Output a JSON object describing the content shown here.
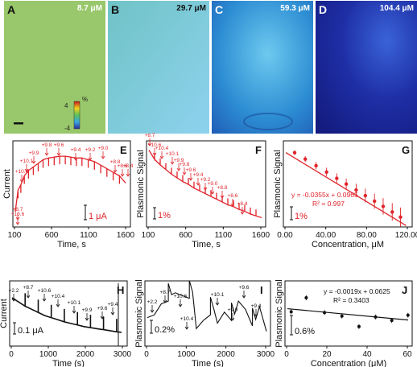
{
  "top_panels": [
    {
      "letter": "A",
      "concentration": "8.7 μM",
      "fill": "#8ec46f"
    },
    {
      "letter": "B",
      "concentration": "29.7 μM",
      "fill": "#7ac6d8"
    },
    {
      "letter": "C",
      "concentration": "59.3 μM",
      "fill": "#2f8fcf"
    },
    {
      "letter": "D",
      "concentration": "104.4 μM",
      "fill": "#1d2ea8"
    }
  ],
  "colorbar": {
    "unit": "%",
    "max": "4",
    "min": "-4"
  },
  "panels": {
    "E": {
      "letter": "E",
      "ylabel": "Current",
      "xlabel": "Time, s",
      "scale": "1 μA",
      "xticks": [
        "100",
        "600",
        "1100",
        "1600"
      ],
      "labels": [
        "+8.7",
        "+10.4",
        "+10.1",
        "+9.9",
        "+9.8",
        "+9.6",
        "+9.4",
        "+9.2",
        "+9.0",
        "+8.8",
        "+8.6",
        "+8.4",
        "+10.6"
      ]
    },
    "F": {
      "letter": "F",
      "ylabel": "Plasmonic Signal",
      "xlabel": "Time, s",
      "scale": "1%",
      "xticks": [
        "100",
        "600",
        "1100",
        "1600"
      ],
      "labels": [
        "+8.7",
        "+10.6",
        "+10.4",
        "+10.1",
        "+9.9",
        "+9.8",
        "+9.6",
        "+9.4",
        "+9.2",
        "+9.0",
        "+8.8",
        "+8.6",
        "+8.4"
      ]
    },
    "G": {
      "letter": "G",
      "ylabel": "Plasmonic Signal",
      "xlabel": "Concentration, μM",
      "scale": "1%",
      "xticks": [
        "0.00",
        "40.00",
        "80.00",
        "120.00"
      ],
      "equation": "y = -0.0355x + 0.0965",
      "r2": "R² = 0.997"
    },
    "H": {
      "letter": "H",
      "ylabel": "Current",
      "xlabel": "Time (s)",
      "scale": "0.1 μA",
      "xticks": [
        "0",
        "1000",
        "2000",
        "3000"
      ],
      "labels": [
        "+2.2",
        "+8.7",
        "+10.6",
        "+10.4",
        "+10.1",
        "+9.9",
        "+9.6",
        "+9.4"
      ]
    },
    "I": {
      "letter": "I",
      "ylabel": "Plasmonic Signal",
      "xlabel": "Time (s)",
      "scale": "0.2%",
      "xticks": [
        "0",
        "1000",
        "2000",
        "3000"
      ],
      "labels": [
        "+2.2",
        "+8.7",
        "+10.6",
        "+10.4",
        "+10.1",
        "+9.9",
        "+9.6",
        "+9.4"
      ]
    },
    "J": {
      "letter": "J",
      "ylabel": "Plasmonic Signal",
      "xlabel": "Concentration (μM)",
      "scale": "0.6%",
      "xticks": [
        "0",
        "20",
        "40",
        "60"
      ],
      "equation": "y = -0.0019x + 0.0625",
      "r2": "R² = 0.3403"
    }
  },
  "chart_data": [
    {
      "type": "line",
      "panel": "E",
      "ylabel": "Current",
      "xlabel": "Time, s",
      "xlim": [
        100,
        1700
      ],
      "series": [
        {
          "name": "",
          "x": [
            100,
            140,
            180,
            230,
            290,
            360,
            430,
            500,
            580,
            660,
            740,
            820,
            900,
            980,
            1060,
            1150,
            1240,
            1330,
            1420,
            1510,
            1600,
            1690
          ],
          "y": [
            0.0,
            1.2,
            1.5,
            2.0,
            2.3,
            2.5,
            2.7,
            2.9,
            3.0,
            3.05,
            3.1,
            3.1,
            3.05,
            3.0,
            3.0,
            2.9,
            2.8,
            2.6,
            2.4,
            2.2,
            2.0,
            1.6
          ]
        }
      ]
    },
    {
      "type": "line",
      "panel": "F",
      "ylabel": "Plasmonic Signal",
      "xlabel": "Time, s",
      "xlim": [
        100,
        1700
      ],
      "series": [
        {
          "name": "",
          "x": [
            100,
            180,
            260,
            340,
            420,
            500,
            580,
            660,
            740,
            820,
            900,
            980,
            1060,
            1140,
            1220,
            1300,
            1380,
            1460,
            1540,
            1620,
            1700
          ],
          "y": [
            0.0,
            -1.0,
            -1.6,
            -2.1,
            -2.6,
            -3.0,
            -3.4,
            -3.7,
            -4.1,
            -4.4,
            -4.7,
            -5.0,
            -5.3,
            -5.6,
            -5.9,
            -6.1,
            -6.4,
            -6.6,
            -6.9,
            -7.1,
            -7.3
          ]
        }
      ]
    },
    {
      "type": "scatter",
      "panel": "G",
      "xlabel": "Concentration, μM",
      "ylabel": "Plasmonic Signal",
      "xlim": [
        0,
        120
      ],
      "series": [
        {
          "name": "",
          "x": [
            8.7,
            19.1,
            29.7,
            40.0,
            50.0,
            59.3,
            69.0,
            78.0,
            87.0,
            95.5,
            104.4,
            112.5
          ],
          "y": [
            -0.21,
            -0.58,
            -0.96,
            -1.32,
            -1.68,
            -2.01,
            -2.35,
            -2.67,
            -2.99,
            -3.29,
            -3.61,
            -3.9
          ]
        }
      ],
      "equation": "y = -0.0355x + 0.0965",
      "r2": 0.997
    },
    {
      "type": "line",
      "panel": "H",
      "ylabel": "Current",
      "xlabel": "Time (s)",
      "xlim": [
        0,
        3400
      ],
      "series": [
        {
          "name": "",
          "x": [
            0,
            200,
            400,
            600,
            800,
            1000,
            1200,
            1400,
            1600,
            1800,
            2000,
            2200,
            2400,
            2600,
            2800,
            3000,
            3200,
            3350
          ],
          "y": [
            1.0,
            0.92,
            0.84,
            0.78,
            0.72,
            0.66,
            0.62,
            0.58,
            0.54,
            0.51,
            0.48,
            0.45,
            0.43,
            0.41,
            0.39,
            0.37,
            0.35,
            0.34
          ]
        }
      ]
    },
    {
      "type": "line",
      "panel": "I",
      "ylabel": "Plasmonic Signal",
      "xlabel": "Time (s)",
      "xlim": [
        0,
        3400
      ],
      "series": [
        {
          "name": "",
          "x": [
            0,
            200,
            400,
            600,
            800,
            1000,
            1200,
            1400,
            1600,
            1800,
            2000,
            2200,
            2400,
            2600,
            2800,
            3000,
            3200,
            3400
          ],
          "y": [
            0.0,
            0.1,
            0.5,
            0.6,
            0.9,
            0.8,
            0.7,
            -0.4,
            -0.1,
            0.1,
            -0.2,
            0.2,
            -0.1,
            0.6,
            0.3,
            -0.3,
            0.4,
            -0.5
          ]
        }
      ]
    },
    {
      "type": "scatter",
      "panel": "J",
      "xlabel": "Concentration (μM)",
      "ylabel": "Plasmonic Signal",
      "xlim": [
        0,
        70
      ],
      "series": [
        {
          "name": "",
          "x": [
            2.2,
            10.9,
            21.5,
            31.6,
            41.5,
            51.1,
            60.5,
            69.9
          ],
          "y": [
            0.062,
            0.078,
            0.061,
            0.057,
            0.045,
            0.056,
            0.052,
            0.058
          ]
        }
      ],
      "equation": "y = -0.0019x + 0.0625",
      "r2": 0.3403
    }
  ]
}
